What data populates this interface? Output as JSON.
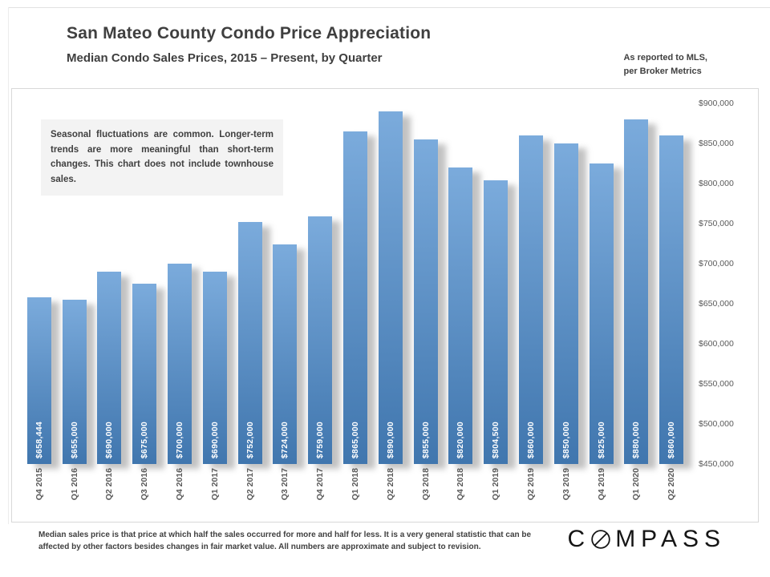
{
  "header": {
    "title": "San Mateo County Condo Price Appreciation",
    "subtitle": "Median Condo Sales Prices, 2015 – Present, by Quarter",
    "source_note": [
      "As reported to MLS,",
      "per Broker Metrics"
    ]
  },
  "annotation": "Seasonal fluctuations are common. Longer-term trends are more meaningful than short-term changes. This chart does not include townhouse sales.",
  "chart_data": {
    "type": "bar",
    "title": "San Mateo County Condo Price Appreciation",
    "subtitle": "Median Condo Sales Prices, 2015 – Present, by Quarter",
    "xlabel": "",
    "ylabel": "",
    "ylim": [
      450000,
      900000
    ],
    "grid": false,
    "legend": "none",
    "categories": [
      "Q4 2015",
      "Q1 2016",
      "Q2 2016",
      "Q3 2016",
      "Q4 2016",
      "Q1 2017",
      "Q2 2017",
      "Q3 2017",
      "Q4 2017",
      "Q1 2018",
      "Q2 2018",
      "Q3 2018",
      "Q4 2018",
      "Q1 2019",
      "Q2 2019",
      "Q3 2019",
      "Q4 2019",
      "Q1 2020",
      "Q2 2020"
    ],
    "values": [
      658444,
      655000,
      690000,
      675000,
      700000,
      690000,
      752000,
      724000,
      759000,
      865000,
      890000,
      855000,
      820000,
      804500,
      860000,
      850000,
      825000,
      880000,
      860000
    ],
    "value_labels": [
      "$658,444",
      "$655,000",
      "$690,000",
      "$675,000",
      "$700,000",
      "$690,000",
      "$752,000",
      "$724,000",
      "$759,000",
      "$865,000",
      "$890,000",
      "$855,000",
      "$820,000",
      "$804,500",
      "$860,000",
      "$850,000",
      "$825,000",
      "$880,000",
      "$860,000"
    ],
    "yticks": [
      {
        "value": 900000,
        "label": "$900,000"
      },
      {
        "value": 850000,
        "label": "$850,000"
      },
      {
        "value": 800000,
        "label": "$800,000"
      },
      {
        "value": 750000,
        "label": "$750,000"
      },
      {
        "value": 700000,
        "label": "$700,000"
      },
      {
        "value": 650000,
        "label": "$650,000"
      },
      {
        "value": 600000,
        "label": "$600,000"
      },
      {
        "value": 550000,
        "label": "$550,000"
      },
      {
        "value": 500000,
        "label": "$500,000"
      },
      {
        "value": 450000,
        "label": "$450,000"
      }
    ],
    "colors": {
      "bar_top": "#7BABDC",
      "bar_bottom": "#4076AE",
      "axis_text": "#595959",
      "value_text": "#FFFFFF"
    }
  },
  "footer": {
    "note": "Median sales price is that price at which half the sales occurred for more and half for less. It is a very general statistic that can be affected by other factors besides changes in fair market value. All numbers are approximate and subject to revision.",
    "logo": {
      "prefix": "C",
      "suffix": "MPASS"
    }
  }
}
